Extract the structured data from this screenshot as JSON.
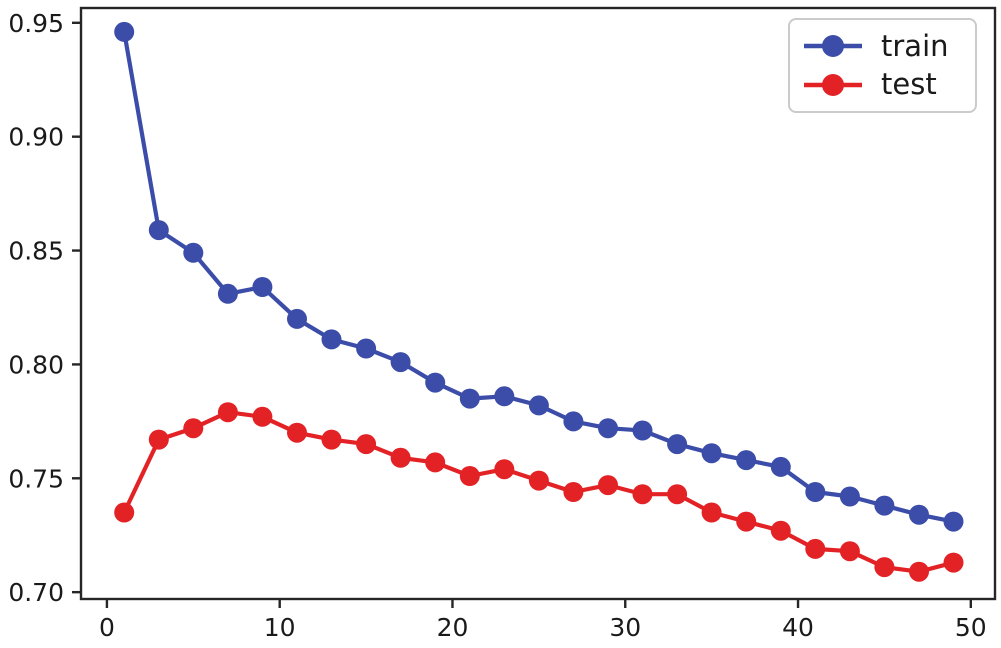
{
  "chart_data": {
    "type": "line",
    "title": "",
    "xlabel": "",
    "ylabel": "",
    "x": [
      1,
      3,
      5,
      7,
      9,
      11,
      13,
      15,
      17,
      19,
      21,
      23,
      25,
      27,
      29,
      31,
      33,
      35,
      37,
      39,
      41,
      43,
      45,
      47,
      49
    ],
    "series": [
      {
        "name": "train",
        "color": "#3b4da8",
        "values": [
          0.946,
          0.859,
          0.849,
          0.831,
          0.834,
          0.82,
          0.811,
          0.807,
          0.801,
          0.792,
          0.785,
          0.786,
          0.782,
          0.775,
          0.772,
          0.771,
          0.765,
          0.761,
          0.758,
          0.755,
          0.744,
          0.742,
          0.738,
          0.734,
          0.731
        ]
      },
      {
        "name": "test",
        "color": "#e32226",
        "values": [
          0.735,
          0.767,
          0.772,
          0.779,
          0.777,
          0.77,
          0.767,
          0.765,
          0.759,
          0.757,
          0.751,
          0.754,
          0.749,
          0.744,
          0.747,
          0.743,
          0.743,
          0.735,
          0.731,
          0.727,
          0.719,
          0.718,
          0.711,
          0.709,
          0.713
        ]
      }
    ],
    "xlim": [
      -1.5,
      51.4
    ],
    "ylim": [
      0.697,
      0.9565
    ],
    "xticks": [
      0,
      10,
      20,
      30,
      40,
      50
    ],
    "xtick_labels": [
      "0",
      "10",
      "20",
      "30",
      "40",
      "50"
    ],
    "yticks": [
      0.7,
      0.75,
      0.8,
      0.85,
      0.9,
      0.95
    ],
    "ytick_labels": [
      "0.70",
      "0.75",
      "0.80",
      "0.85",
      "0.90",
      "0.95"
    ],
    "grid": false,
    "legend_position": "upper right",
    "marker": "circle",
    "axis_color": "#262626",
    "tick_label_color": "#1a1a1a",
    "background": "#ffffff"
  }
}
